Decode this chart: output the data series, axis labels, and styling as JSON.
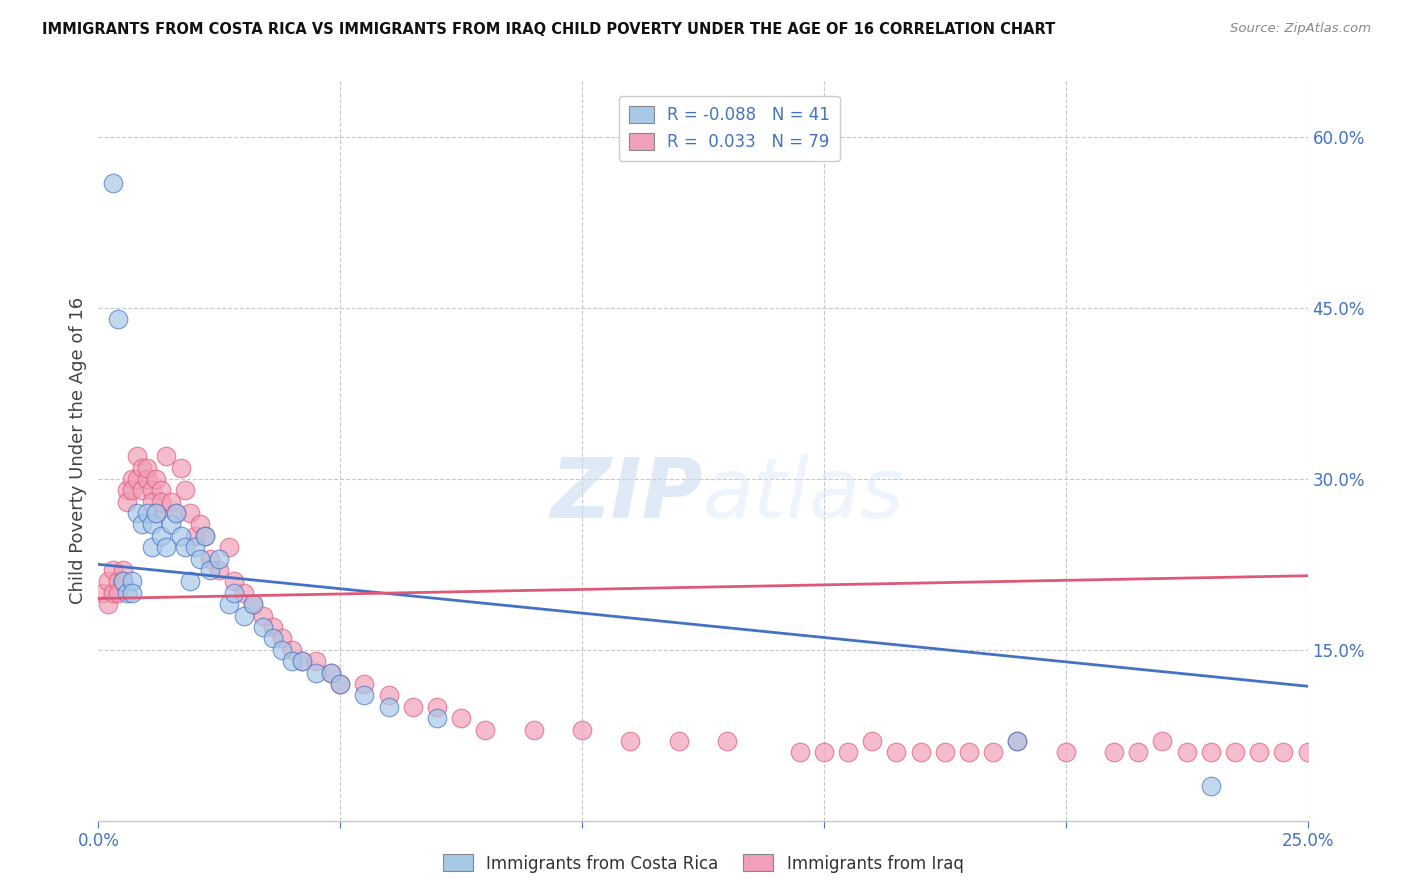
{
  "title": "IMMIGRANTS FROM COSTA RICA VS IMMIGRANTS FROM IRAQ CHILD POVERTY UNDER THE AGE OF 16 CORRELATION CHART",
  "source": "Source: ZipAtlas.com",
  "ylabel": "Child Poverty Under the Age of 16",
  "xlim": [
    0.0,
    0.25
  ],
  "ylim": [
    0.0,
    0.65
  ],
  "watermark_zip": "ZIP",
  "watermark_atlas": "atlas",
  "color_costa_rica": "#a8c8e8",
  "color_iraq": "#f0a0b8",
  "trendline_color_costa_rica": "#4472c4",
  "trendline_color_iraq": "#e05878",
  "costa_rica_x": [
    0.003,
    0.004,
    0.005,
    0.006,
    0.007,
    0.007,
    0.008,
    0.009,
    0.01,
    0.011,
    0.011,
    0.012,
    0.013,
    0.014,
    0.015,
    0.016,
    0.017,
    0.018,
    0.019,
    0.02,
    0.021,
    0.022,
    0.023,
    0.025,
    0.027,
    0.028,
    0.03,
    0.032,
    0.034,
    0.036,
    0.038,
    0.04,
    0.042,
    0.045,
    0.048,
    0.05,
    0.055,
    0.06,
    0.07,
    0.19,
    0.23
  ],
  "costa_rica_y": [
    0.56,
    0.44,
    0.21,
    0.2,
    0.21,
    0.2,
    0.27,
    0.26,
    0.27,
    0.26,
    0.24,
    0.27,
    0.25,
    0.24,
    0.26,
    0.27,
    0.25,
    0.24,
    0.21,
    0.24,
    0.23,
    0.25,
    0.22,
    0.23,
    0.19,
    0.2,
    0.18,
    0.19,
    0.17,
    0.16,
    0.15,
    0.14,
    0.14,
    0.13,
    0.13,
    0.12,
    0.11,
    0.1,
    0.09,
    0.07,
    0.03
  ],
  "iraq_x": [
    0.001,
    0.002,
    0.002,
    0.003,
    0.003,
    0.004,
    0.004,
    0.005,
    0.005,
    0.006,
    0.006,
    0.007,
    0.007,
    0.008,
    0.008,
    0.009,
    0.009,
    0.01,
    0.01,
    0.011,
    0.011,
    0.012,
    0.012,
    0.013,
    0.013,
    0.014,
    0.015,
    0.016,
    0.017,
    0.018,
    0.019,
    0.02,
    0.021,
    0.022,
    0.023,
    0.025,
    0.027,
    0.028,
    0.03,
    0.032,
    0.034,
    0.036,
    0.038,
    0.04,
    0.042,
    0.045,
    0.048,
    0.05,
    0.055,
    0.06,
    0.065,
    0.07,
    0.075,
    0.08,
    0.09,
    0.1,
    0.11,
    0.12,
    0.13,
    0.145,
    0.15,
    0.155,
    0.16,
    0.165,
    0.17,
    0.175,
    0.18,
    0.185,
    0.19,
    0.2,
    0.21,
    0.215,
    0.22,
    0.225,
    0.23,
    0.235,
    0.24,
    0.245,
    0.25
  ],
  "iraq_y": [
    0.2,
    0.19,
    0.21,
    0.2,
    0.22,
    0.21,
    0.2,
    0.22,
    0.21,
    0.29,
    0.28,
    0.3,
    0.29,
    0.32,
    0.3,
    0.31,
    0.29,
    0.3,
    0.31,
    0.29,
    0.28,
    0.3,
    0.27,
    0.29,
    0.28,
    0.32,
    0.28,
    0.27,
    0.31,
    0.29,
    0.27,
    0.25,
    0.26,
    0.25,
    0.23,
    0.22,
    0.24,
    0.21,
    0.2,
    0.19,
    0.18,
    0.17,
    0.16,
    0.15,
    0.14,
    0.14,
    0.13,
    0.12,
    0.12,
    0.11,
    0.1,
    0.1,
    0.09,
    0.08,
    0.08,
    0.08,
    0.07,
    0.07,
    0.07,
    0.06,
    0.06,
    0.06,
    0.07,
    0.06,
    0.06,
    0.06,
    0.06,
    0.06,
    0.07,
    0.06,
    0.06,
    0.06,
    0.07,
    0.06,
    0.06,
    0.06,
    0.06,
    0.06,
    0.06
  ],
  "trendline_cr_start_y": 0.225,
  "trendline_cr_end_y": 0.118,
  "trendline_iq_start_y": 0.195,
  "trendline_iq_end_y": 0.215
}
